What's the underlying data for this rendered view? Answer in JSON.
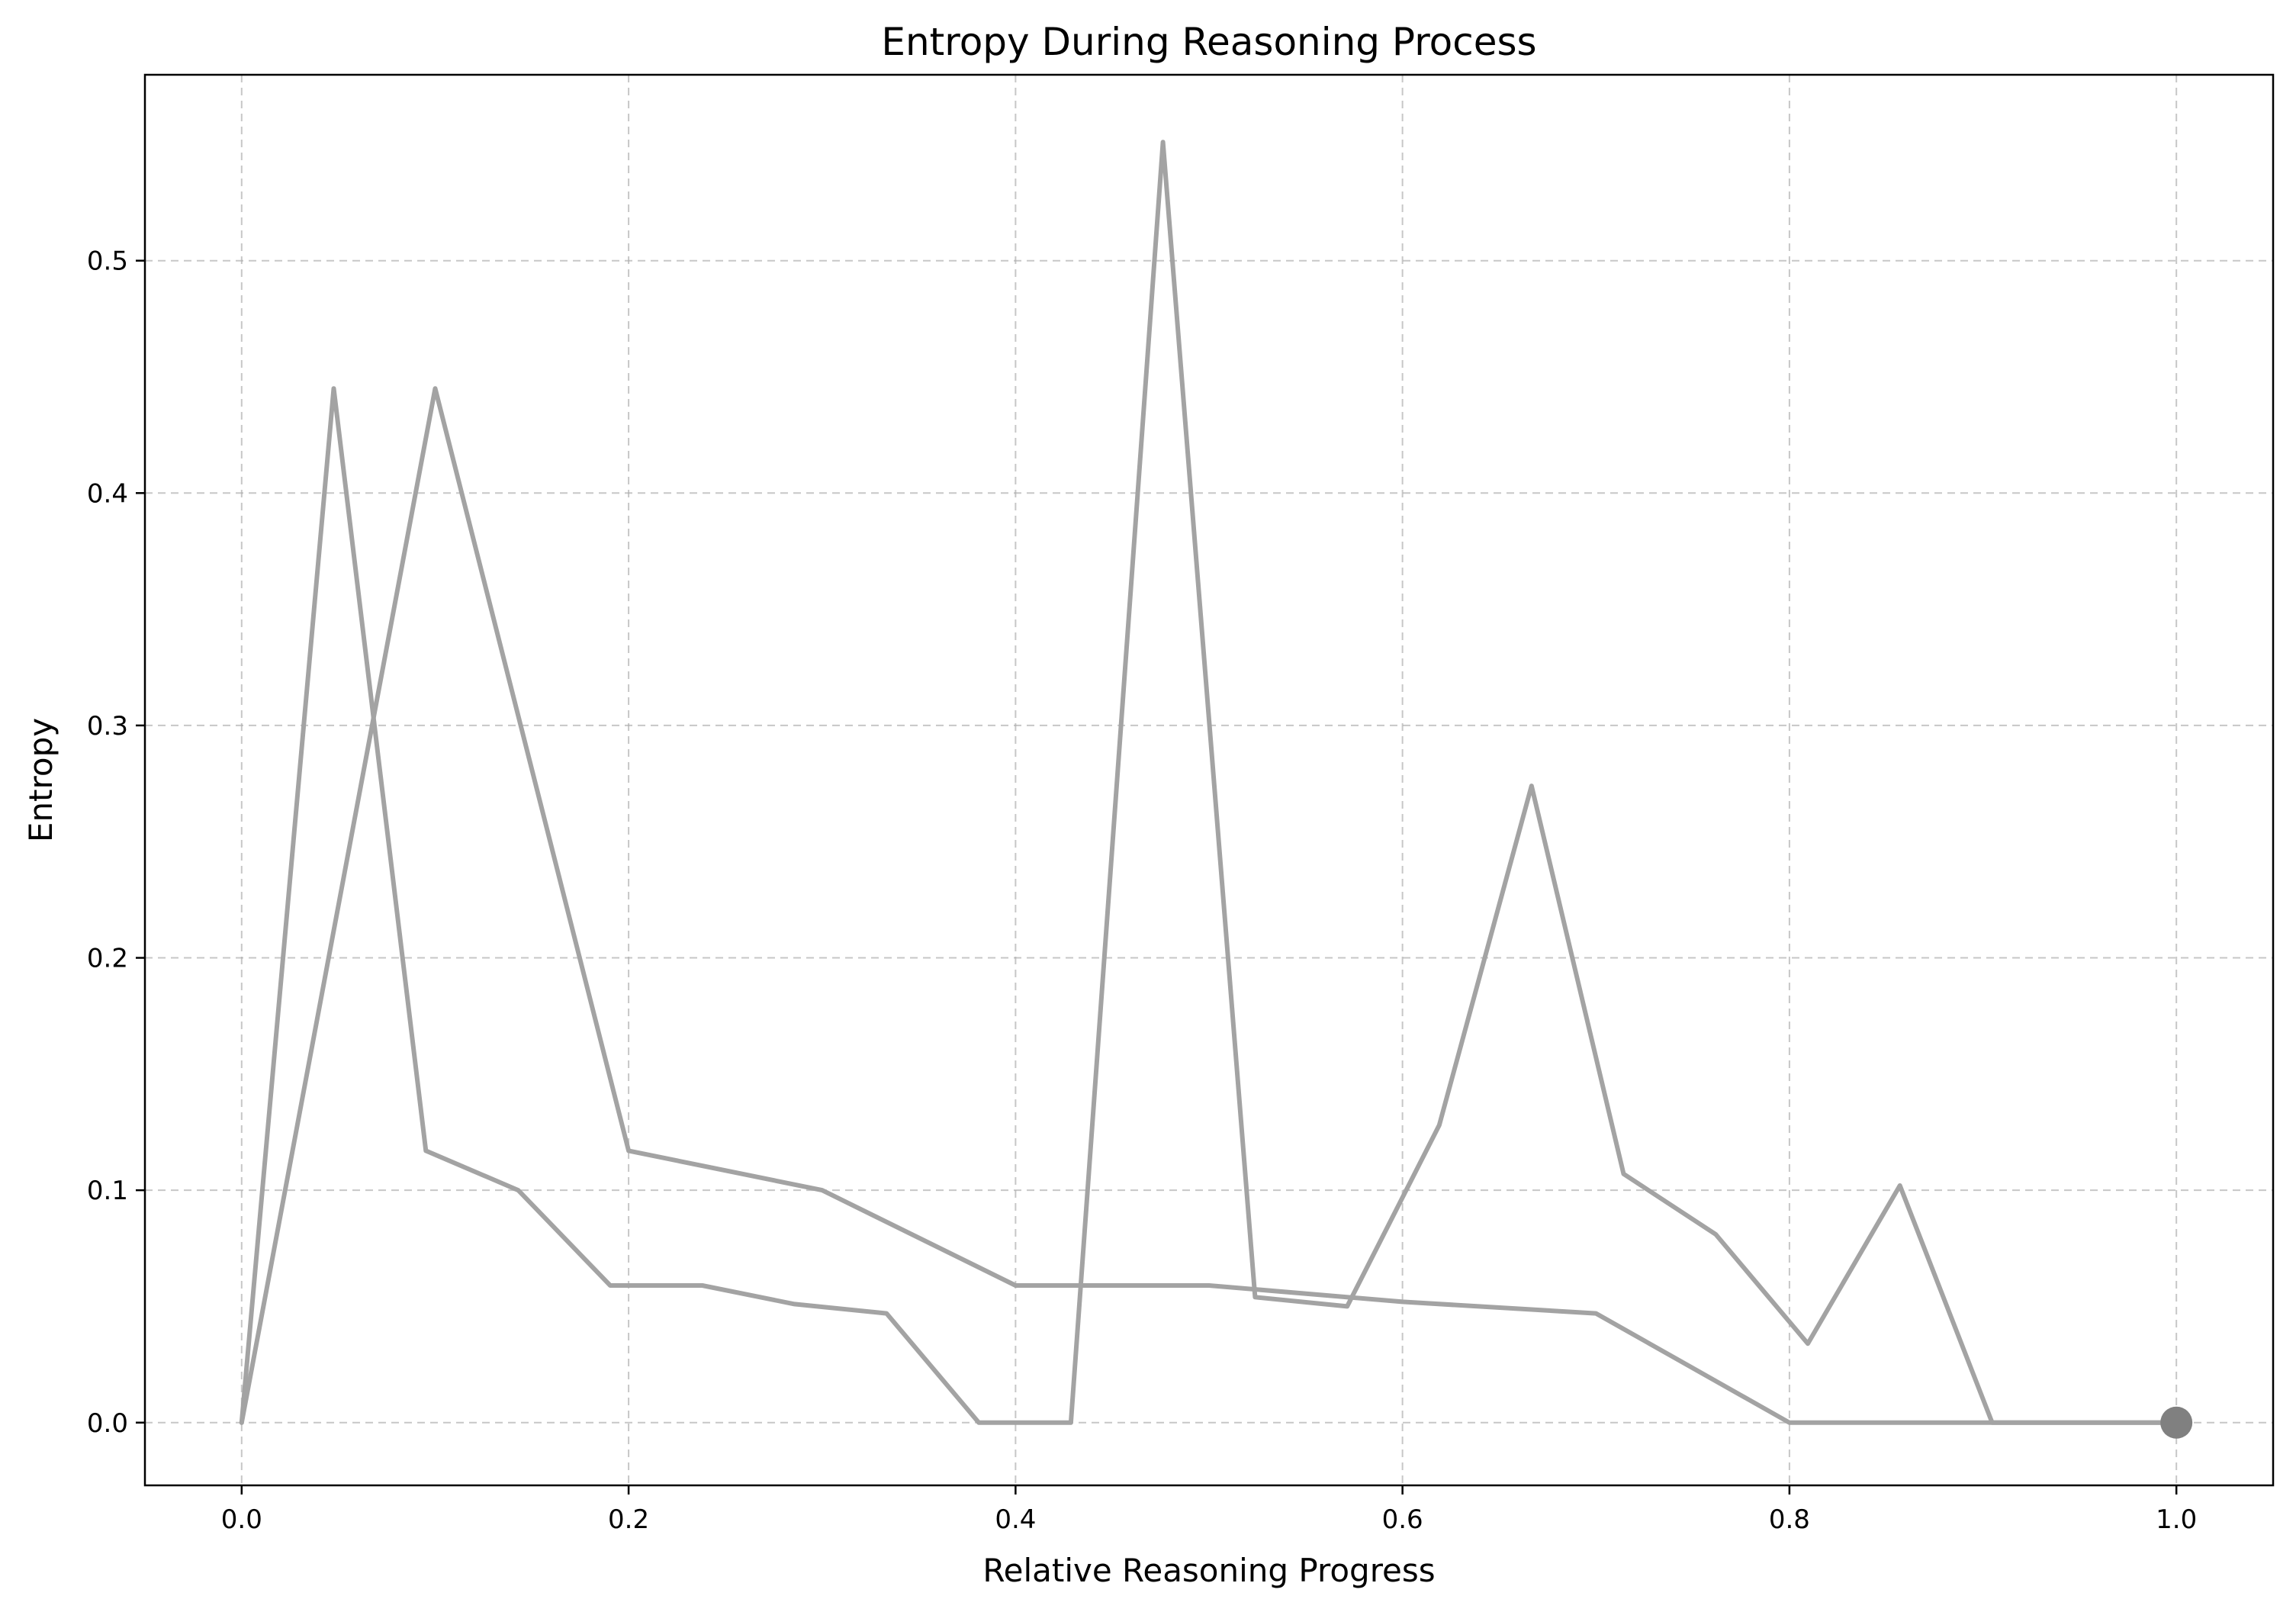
{
  "chart_data": {
    "type": "line",
    "title": "Entropy During Reasoning Process",
    "xlabel": "Relative Reasoning Progress",
    "ylabel": "Entropy",
    "xlim": [
      -0.05,
      1.05
    ],
    "ylim": [
      -0.027,
      0.58
    ],
    "xticks": [
      0.0,
      0.2,
      0.4,
      0.6,
      0.8,
      1.0
    ],
    "xtick_labels": [
      "0.0",
      "0.2",
      "0.4",
      "0.6",
      "0.8",
      "1.0"
    ],
    "yticks": [
      0.0,
      0.1,
      0.2,
      0.3,
      0.4,
      0.5
    ],
    "ytick_labels": [
      "0.0",
      "0.1",
      "0.2",
      "0.3",
      "0.4",
      "0.5"
    ],
    "grid": true,
    "series": [
      {
        "color": "#a3a3a3",
        "x": [
          0.0,
          0.1,
          0.2,
          0.3,
          0.4,
          0.5,
          0.6,
          0.7,
          0.8,
          0.9,
          1.0
        ],
        "y": [
          0.0,
          0.445,
          0.117,
          0.1,
          0.059,
          0.059,
          0.052,
          0.047,
          0.0,
          0.0,
          0.0
        ]
      },
      {
        "color": "#a3a3a3",
        "x": [
          0.0,
          0.0476,
          0.0952,
          0.1429,
          0.1905,
          0.2381,
          0.2857,
          0.3333,
          0.381,
          0.4286,
          0.4762,
          0.5238,
          0.5714,
          0.619,
          0.6667,
          0.7143,
          0.7619,
          0.8095,
          0.8571,
          0.9048,
          0.9524,
          1.0
        ],
        "y": [
          0.0,
          0.445,
          0.117,
          0.1,
          0.059,
          0.059,
          0.051,
          0.047,
          0.0,
          0.0,
          0.551,
          0.054,
          0.05,
          0.128,
          0.274,
          0.107,
          0.081,
          0.034,
          0.102,
          0.0,
          0.0,
          0.0
        ]
      }
    ],
    "end_marker": {
      "x": 1.0,
      "y": 0.0,
      "color": "#808080"
    }
  }
}
